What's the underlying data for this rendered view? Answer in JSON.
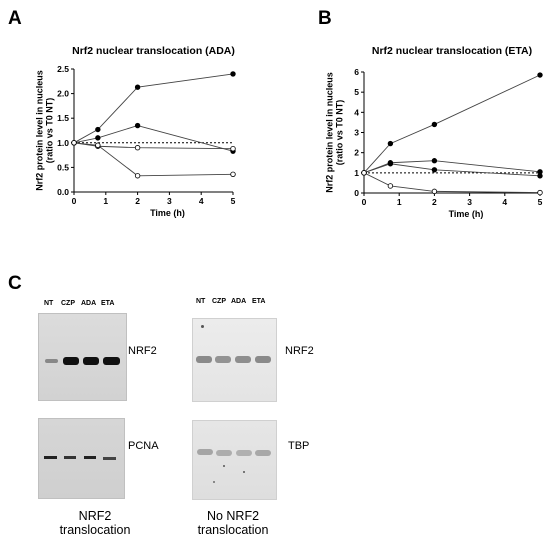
{
  "panels": {
    "a": "A",
    "b": "B",
    "c": "C"
  },
  "chart_data": [
    {
      "type": "line",
      "title": "Nrf2 nuclear translocation (ADA)",
      "xlabel": "Time (h)",
      "ylabel": "Nrf2 protein level in nucleus (ratio vs T0 NT)",
      "xlim": [
        0,
        5
      ],
      "ylim": [
        0,
        2.5
      ],
      "xticks": [
        "0",
        "1",
        "2",
        "3",
        "4",
        "5"
      ],
      "yticks": [
        "0.0",
        "0.5",
        "1.0",
        "1.5",
        "2.0",
        "2.5"
      ],
      "reference_line": 1.0,
      "series": [
        {
          "marker": "filled",
          "x": [
            0,
            0.75,
            2,
            5
          ],
          "y": [
            1.0,
            1.27,
            2.13,
            2.4
          ]
        },
        {
          "marker": "filled",
          "x": [
            0,
            0.75,
            2,
            5
          ],
          "y": [
            1.0,
            1.1,
            1.35,
            0.83
          ]
        },
        {
          "marker": "open",
          "x": [
            0,
            0.75,
            2,
            5
          ],
          "y": [
            1.0,
            0.93,
            0.9,
            0.88
          ]
        },
        {
          "marker": "open",
          "x": [
            0,
            0.75,
            2,
            5
          ],
          "y": [
            1.0,
            0.95,
            0.33,
            0.36
          ]
        }
      ]
    },
    {
      "type": "line",
      "title": "Nrf2 nuclear translocation (ETA)",
      "xlabel": "Time (h)",
      "ylabel": "Nrf2 protein level in nucleus (ratio vs T0 NT)",
      "xlim": [
        0,
        5
      ],
      "ylim": [
        0,
        6
      ],
      "xticks": [
        "0",
        "1",
        "2",
        "3",
        "4",
        "5"
      ],
      "yticks": [
        "0",
        "1",
        "2",
        "3",
        "4",
        "5",
        "6"
      ],
      "reference_line": 1.0,
      "series": [
        {
          "marker": "filled",
          "x": [
            0,
            0.75,
            2,
            5
          ],
          "y": [
            1.0,
            2.45,
            3.4,
            5.85
          ]
        },
        {
          "marker": "filled",
          "x": [
            0,
            0.75,
            2,
            5
          ],
          "y": [
            1.0,
            1.5,
            1.6,
            1.05
          ]
        },
        {
          "marker": "filled",
          "x": [
            0,
            0.75,
            2,
            5
          ],
          "y": [
            1.0,
            1.45,
            1.15,
            0.85
          ]
        },
        {
          "marker": "open",
          "x": [
            0,
            0.75,
            2,
            5
          ],
          "y": [
            1.0,
            0.35,
            0.08,
            0.02
          ]
        }
      ]
    }
  ],
  "blots": {
    "lanes": [
      "NT",
      "CZP",
      "ADA",
      "ETA"
    ],
    "left": {
      "top_label": "NRF2",
      "bottom_label": "PCNA",
      "caption_line1": "NRF2",
      "caption_line2": "translocation"
    },
    "right": {
      "top_label": "NRF2",
      "bottom_label": "TBP",
      "caption_line1": "No NRF2",
      "caption_line2": "translocation"
    }
  }
}
